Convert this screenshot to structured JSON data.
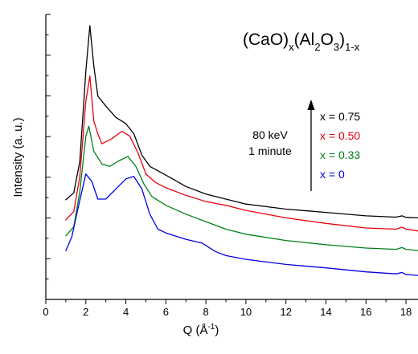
{
  "chart_data": {
    "type": "line",
    "title": "",
    "xlabel": {
      "base": "Q (Å",
      "sup": "-1",
      "tail": ")"
    },
    "ylabel": "Intensity (a. u.)",
    "xlim": [
      0,
      18.6
    ],
    "ylim": [
      0,
      1
    ],
    "x_ticks": [
      0,
      2,
      4,
      6,
      8,
      10,
      12,
      14,
      16,
      18
    ],
    "x_minor_step": 1,
    "y_tick_labels_shown": false,
    "grid": false,
    "formula": {
      "p1": "(CaO)",
      "s1": "x",
      "p2": "(Al",
      "s2": "2",
      "p3": "O",
      "s3": "3",
      "p4": ")",
      "s4": "1-x"
    },
    "annotation": [
      "80 keV",
      "1 minute"
    ],
    "arrow": "up",
    "legend_placement": "upper-right",
    "series": [
      {
        "name": "x = 0.75",
        "color": "#000000",
        "points": [
          [
            1.0,
            0.307
          ],
          [
            1.4,
            0.335
          ],
          [
            1.7,
            0.46
          ],
          [
            2.0,
            0.82
          ],
          [
            2.2,
            1.0
          ],
          [
            2.4,
            0.84
          ],
          [
            2.6,
            0.72
          ],
          [
            3.0,
            0.68
          ],
          [
            3.5,
            0.635
          ],
          [
            4.0,
            0.61
          ],
          [
            4.4,
            0.57
          ],
          [
            4.8,
            0.485
          ],
          [
            5.2,
            0.44
          ],
          [
            6.0,
            0.405
          ],
          [
            7.0,
            0.36
          ],
          [
            8.0,
            0.33
          ],
          [
            9.0,
            0.31
          ],
          [
            10.0,
            0.29
          ],
          [
            12.0,
            0.27
          ],
          [
            14.0,
            0.257
          ],
          [
            16.0,
            0.243
          ],
          [
            17.5,
            0.238
          ],
          [
            17.8,
            0.243
          ],
          [
            18.0,
            0.237
          ],
          [
            18.6,
            0.235
          ]
        ]
      },
      {
        "name": "x = 0.50",
        "color": "#e8000b",
        "points": [
          [
            1.0,
            0.227
          ],
          [
            1.4,
            0.26
          ],
          [
            1.7,
            0.4
          ],
          [
            2.0,
            0.7
          ],
          [
            2.2,
            0.8
          ],
          [
            2.4,
            0.62
          ],
          [
            2.6,
            0.57
          ],
          [
            2.8,
            0.53
          ],
          [
            3.3,
            0.55
          ],
          [
            3.8,
            0.58
          ],
          [
            4.2,
            0.56
          ],
          [
            4.6,
            0.495
          ],
          [
            5.0,
            0.41
          ],
          [
            5.5,
            0.375
          ],
          [
            6.0,
            0.355
          ],
          [
            7.0,
            0.325
          ],
          [
            8.0,
            0.3
          ],
          [
            9.0,
            0.285
          ],
          [
            10.0,
            0.265
          ],
          [
            12.0,
            0.235
          ],
          [
            14.0,
            0.213
          ],
          [
            16.0,
            0.195
          ],
          [
            17.5,
            0.19
          ],
          [
            17.8,
            0.198
          ],
          [
            18.0,
            0.19
          ],
          [
            18.6,
            0.183
          ]
        ]
      },
      {
        "name": "x = 0.33",
        "color": "#00801a",
        "points": [
          [
            1.0,
            0.164
          ],
          [
            1.4,
            0.2
          ],
          [
            1.7,
            0.34
          ],
          [
            2.0,
            0.56
          ],
          [
            2.15,
            0.6
          ],
          [
            2.4,
            0.5
          ],
          [
            2.8,
            0.45
          ],
          [
            3.2,
            0.44
          ],
          [
            3.6,
            0.46
          ],
          [
            4.1,
            0.48
          ],
          [
            4.5,
            0.44
          ],
          [
            4.9,
            0.37
          ],
          [
            5.3,
            0.32
          ],
          [
            6.0,
            0.285
          ],
          [
            7.0,
            0.25
          ],
          [
            8.0,
            0.22
          ],
          [
            9.0,
            0.19
          ],
          [
            10.0,
            0.17
          ],
          [
            12.0,
            0.145
          ],
          [
            14.0,
            0.128
          ],
          [
            16.0,
            0.115
          ],
          [
            17.5,
            0.11
          ],
          [
            17.8,
            0.117
          ],
          [
            18.0,
            0.11
          ],
          [
            18.6,
            0.105
          ]
        ]
      },
      {
        "name": "x = 0",
        "color": "#0000e6",
        "points": [
          [
            1.0,
            0.105
          ],
          [
            1.3,
            0.16
          ],
          [
            1.6,
            0.27
          ],
          [
            2.0,
            0.41
          ],
          [
            2.3,
            0.38
          ],
          [
            2.6,
            0.31
          ],
          [
            3.0,
            0.31
          ],
          [
            3.5,
            0.35
          ],
          [
            4.0,
            0.39
          ],
          [
            4.4,
            0.4
          ],
          [
            4.8,
            0.35
          ],
          [
            5.2,
            0.25
          ],
          [
            5.6,
            0.19
          ],
          [
            6.0,
            0.175
          ],
          [
            7.0,
            0.15
          ],
          [
            7.8,
            0.135
          ],
          [
            8.5,
            0.1
          ],
          [
            9.0,
            0.085
          ],
          [
            10.0,
            0.07
          ],
          [
            12.0,
            0.05
          ],
          [
            14.0,
            0.036
          ],
          [
            16.0,
            0.02
          ],
          [
            17.5,
            0.012
          ],
          [
            17.8,
            0.018
          ],
          [
            18.0,
            0.01
          ],
          [
            18.6,
            0.006
          ]
        ]
      }
    ]
  },
  "colors": {
    "axis": "#000000",
    "background": "#ffffff"
  }
}
